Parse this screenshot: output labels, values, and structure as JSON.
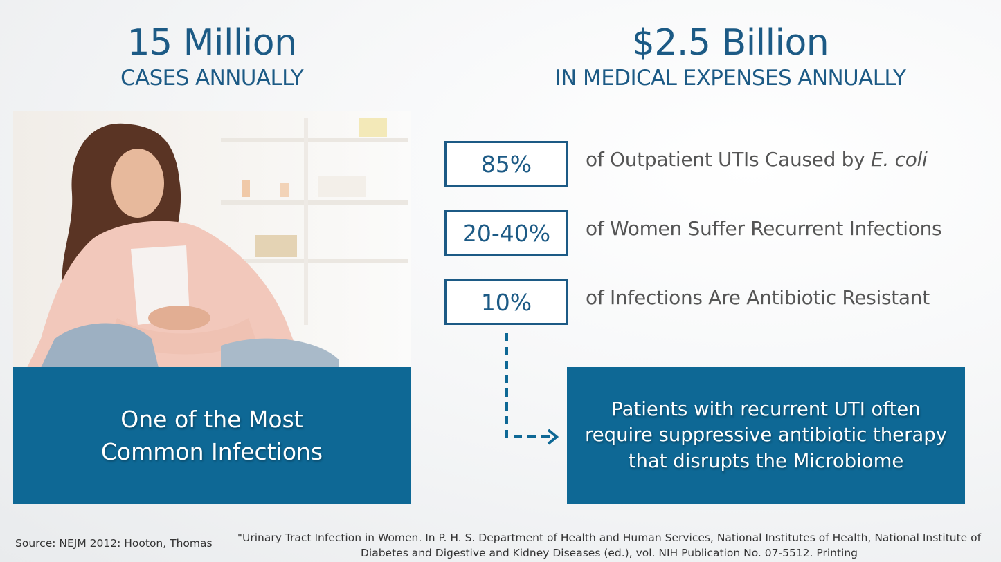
{
  "left_stat": {
    "value": "15 Million",
    "label": "CASES ANNUALLY"
  },
  "right_stat": {
    "value": "$2.5 Billion",
    "label": "IN MEDICAL EXPENSES ANNUALLY"
  },
  "left_panel": {
    "caption_line1": "One of the Most",
    "caption_line2": "Common Infections"
  },
  "facts": [
    {
      "pct": "85%",
      "text": "of Outpatient UTIs Caused by ",
      "emph": "E. coli"
    },
    {
      "pct": "20-40%",
      "text": "of Women Suffer Recurrent Infections"
    },
    {
      "pct": "10%",
      "text": "of Infections Are Antibiotic Resistant"
    }
  ],
  "callout": {
    "line1": "Patients with recurrent UTI often",
    "line2": "require suppressive antibiotic therapy",
    "line3": "that disrupts the Microbiome"
  },
  "footer": {
    "source": "Source:  NEJM 2012: Hooton, Thomas",
    "reference_line1": "\"Urinary Tract Infection in Women. In P. H. S. Department of Health and Human Services, National Institutes of Health, National Institute of",
    "reference_line2": "Diabetes and Digestive and Kidney Diseases (ed.), vol. NIH Publication No. 07-5512. Printing"
  },
  "colors": {
    "brand_blue": "#0e6895",
    "heading_blue": "#1c5a85",
    "body_gray": "#555555"
  }
}
